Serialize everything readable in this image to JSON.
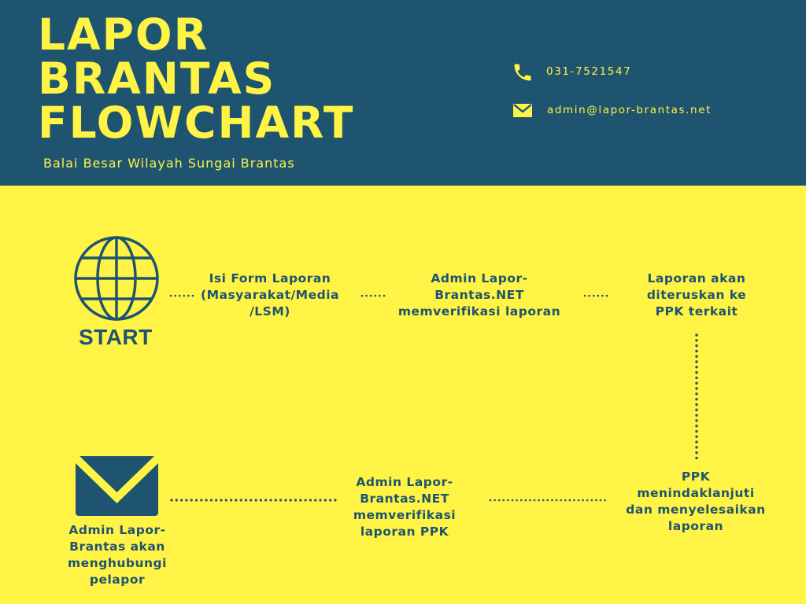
{
  "colors": {
    "header_bg": "#1e546f",
    "main_bg": "#fff346",
    "accent": "#fff346",
    "navy": "#1e546f"
  },
  "header": {
    "title_lines": [
      "LAPOR",
      "BRANTAS",
      "FLOWCHART"
    ],
    "subtitle": "Balai Besar Wilayah Sungai Brantas",
    "phone": "031-7521547",
    "email": "admin@lapor-brantas.net",
    "phone_icon": "phone-icon",
    "email_icon": "envelope-icon"
  },
  "flow": {
    "start_label": "START",
    "start_icon": "globe-icon",
    "end_icon": "envelope-icon",
    "steps": [
      {
        "lines": [
          "Isi Form Laporan",
          "(Masyarakat/Media",
          "/LSM)"
        ]
      },
      {
        "lines": [
          "Admin Lapor-",
          "Brantas.NET",
          "memverifikasi laporan"
        ]
      },
      {
        "lines": [
          "Laporan akan",
          "diteruskan ke",
          "PPK terkait"
        ]
      },
      {
        "lines": [
          "PPK",
          "menindaklanjuti",
          "dan menyelesaikan",
          "laporan"
        ]
      },
      {
        "lines": [
          "Admin Lapor-",
          "Brantas.NET",
          "memverifikasi",
          "laporan PPK"
        ]
      },
      {
        "lines": [
          "Admin Lapor-",
          "Brantas akan",
          "menghubungi",
          "pelapor"
        ]
      }
    ]
  }
}
